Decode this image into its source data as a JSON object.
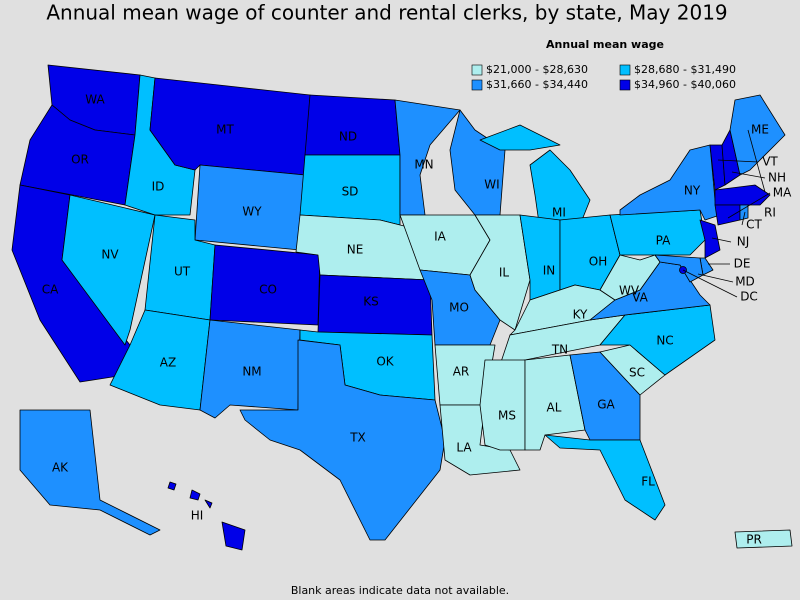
{
  "title": "Annual mean wage of counter and rental clerks, by state, May 2019",
  "legend": {
    "title": "Annual mean wage",
    "items": [
      {
        "label": "$21,000 - $28,630",
        "color": "#aeeeee"
      },
      {
        "label": "$28,680 - $31,490",
        "color": "#00bfff"
      },
      {
        "label": "$31,660 - $34,440",
        "color": "#1e90ff"
      },
      {
        "label": "$34,960 - $40,060",
        "color": "#0000e8"
      }
    ]
  },
  "states": [
    {
      "abbr": "WA",
      "bin": 3
    },
    {
      "abbr": "OR",
      "bin": 3
    },
    {
      "abbr": "CA",
      "bin": 3
    },
    {
      "abbr": "NV",
      "bin": 1
    },
    {
      "abbr": "ID",
      "bin": 1
    },
    {
      "abbr": "MT",
      "bin": 3
    },
    {
      "abbr": "WY",
      "bin": 2
    },
    {
      "abbr": "UT",
      "bin": 1
    },
    {
      "abbr": "AZ",
      "bin": 1
    },
    {
      "abbr": "CO",
      "bin": 3
    },
    {
      "abbr": "NM",
      "bin": 2
    },
    {
      "abbr": "ND",
      "bin": 3
    },
    {
      "abbr": "SD",
      "bin": 1
    },
    {
      "abbr": "NE",
      "bin": 0
    },
    {
      "abbr": "KS",
      "bin": 3
    },
    {
      "abbr": "OK",
      "bin": 1
    },
    {
      "abbr": "TX",
      "bin": 2
    },
    {
      "abbr": "MN",
      "bin": 2
    },
    {
      "abbr": "IA",
      "bin": 0
    },
    {
      "abbr": "MO",
      "bin": 2
    },
    {
      "abbr": "AR",
      "bin": 0
    },
    {
      "abbr": "LA",
      "bin": 0
    },
    {
      "abbr": "WI",
      "bin": 2
    },
    {
      "abbr": "IL",
      "bin": 0
    },
    {
      "abbr": "MI",
      "bin": 1
    },
    {
      "abbr": "IN",
      "bin": 1
    },
    {
      "abbr": "OH",
      "bin": 1
    },
    {
      "abbr": "KY",
      "bin": 0
    },
    {
      "abbr": "TN",
      "bin": 0
    },
    {
      "abbr": "MS",
      "bin": 0
    },
    {
      "abbr": "AL",
      "bin": 0
    },
    {
      "abbr": "GA",
      "bin": 2
    },
    {
      "abbr": "FL",
      "bin": 1
    },
    {
      "abbr": "SC",
      "bin": 0
    },
    {
      "abbr": "NC",
      "bin": 1
    },
    {
      "abbr": "VA",
      "bin": 2
    },
    {
      "abbr": "WV",
      "bin": 0
    },
    {
      "abbr": "PA",
      "bin": 1
    },
    {
      "abbr": "NY",
      "bin": 2
    },
    {
      "abbr": "NJ",
      "bin": 3
    },
    {
      "abbr": "DE",
      "bin": 2
    },
    {
      "abbr": "MD",
      "bin": 2
    },
    {
      "abbr": "VT",
      "bin": 3
    },
    {
      "abbr": "NH",
      "bin": 3
    },
    {
      "abbr": "ME",
      "bin": 2
    },
    {
      "abbr": "MA",
      "bin": 3
    },
    {
      "abbr": "CT",
      "bin": 3
    },
    {
      "abbr": "RI",
      "bin": 2
    },
    {
      "abbr": "DC",
      "bin": 3
    },
    {
      "abbr": "AK",
      "bin": 2
    },
    {
      "abbr": "HI",
      "bin": 3
    },
    {
      "abbr": "PR",
      "bin": 0
    }
  ],
  "footnote": "Blank areas indicate data not available."
}
